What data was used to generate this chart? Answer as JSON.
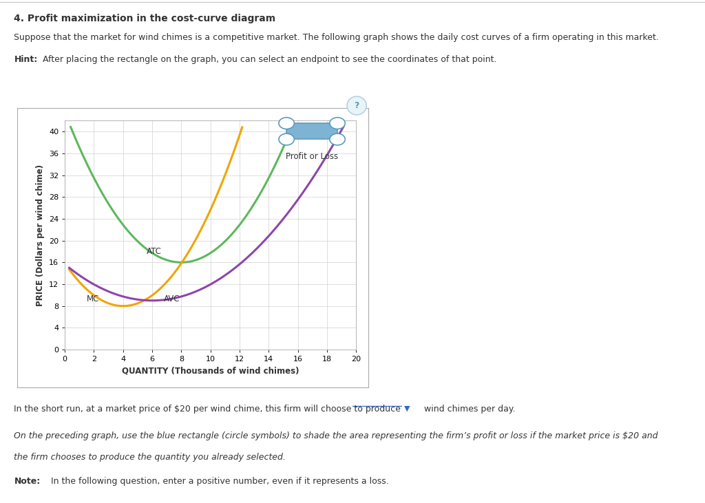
{
  "title_main": "4. Profit maximization in the cost-curve diagram",
  "subtitle": "Suppose that the market for wind chimes is a competitive market. The following graph shows the daily cost curves of a firm operating in this market.",
  "hint_bold": "Hint:",
  "hint_rest": " After placing the rectangle on the graph, you can select an endpoint to see the coordinates of that point.",
  "xlabel": "QUANTITY (Thousands of wind chimes)",
  "ylabel": "PRICE (Dollars per wind chime)",
  "xlim": [
    0,
    20
  ],
  "ylim": [
    0,
    42
  ],
  "xticks": [
    0,
    2,
    4,
    6,
    8,
    10,
    12,
    14,
    16,
    18,
    20
  ],
  "yticks": [
    0,
    4,
    8,
    12,
    16,
    20,
    24,
    28,
    32,
    36,
    40
  ],
  "atc_color": "#5cb85c",
  "mc_color": "#f0a500",
  "avc_color": "#8e44ad",
  "background_color": "#ffffff",
  "graph_bg": "#ffffff",
  "grid_color": "#d0d0d0",
  "text_color": "#333333",
  "legend_label": "Profit or Loss",
  "bottom_text1": "In the short run, at a market price of $20 per wind chime, this firm will choose to produce",
  "bottom_text2": "wind chimes per day.",
  "italic_text1": "On the preceding graph, use the blue rectangle (circle symbols) to shade the area representing the firm’s profit or loss if the market price is $20 and",
  "italic_text2": "the firm chooses to produce the quantity you already selected.",
  "note_bold": "Note:",
  "note_rest": " In the following question, enter a positive number, even if it represents a loss.",
  "atc_label": "ATC",
  "mc_label": "MC",
  "avc_label": "AVC",
  "box_color": "#aaaaaa",
  "icon_fill": "#7fb3d3",
  "icon_edge": "#5a9bbf",
  "qmark_fill": "#e8f4f8",
  "qmark_edge": "#aaccdd",
  "qmark_text": "#5a9bbf",
  "dropdown_color": "#3366cc",
  "separator_color": "#cccccc"
}
